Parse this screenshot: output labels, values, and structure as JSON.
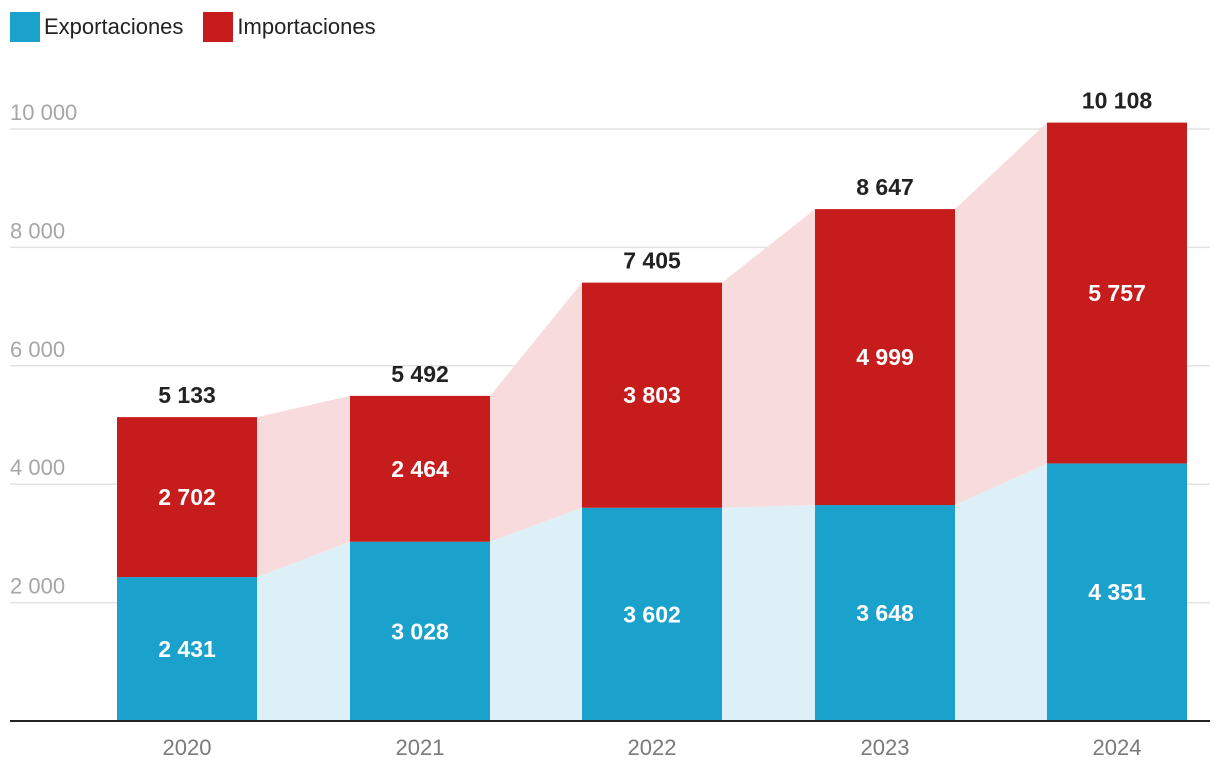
{
  "chart_data": {
    "type": "bar",
    "stacked": true,
    "categories": [
      "2020",
      "2021",
      "2022",
      "2023",
      "2024"
    ],
    "series": [
      {
        "name": "Exportaciones",
        "color": "#1aa1cc",
        "band_color": "#ddf0f7",
        "values": [
          2431,
          3028,
          3602,
          3648,
          4351
        ],
        "labels": [
          "2 431",
          "3 028",
          "3 602",
          "3 648",
          "4 351"
        ]
      },
      {
        "name": "Importaciones",
        "color": "#c61c1c",
        "band_color": "#f8dcdd",
        "values": [
          2702,
          2464,
          3803,
          4999,
          5757
        ],
        "labels": [
          "2 702",
          "2 464",
          "3 803",
          "4 999",
          "5 757"
        ]
      }
    ],
    "totals": [
      5133,
      5492,
      7405,
      8647,
      10108
    ],
    "total_labels": [
      "5 133",
      "5 492",
      "7 405",
      "8 647",
      "10 108"
    ],
    "yticks": [
      2000,
      4000,
      6000,
      8000,
      10000
    ],
    "ytick_labels": [
      "2 000",
      "4 000",
      "6 000",
      "8 000",
      "10 000"
    ],
    "ylim": [
      0,
      10000
    ],
    "grid": true,
    "legend": "top-left"
  }
}
